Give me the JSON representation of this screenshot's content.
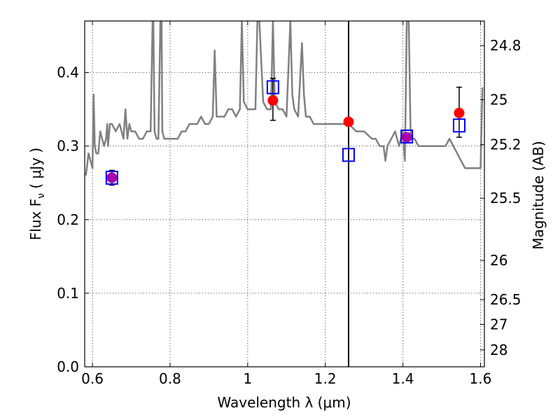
{
  "chart_data": {
    "type": "line",
    "xlabel": "Wavelength  λ (μm)",
    "ylabel": "Flux  F",
    "ylabel_sub": "ν",
    "ylabel_unit": "  ( μJy )",
    "y2label": "Magnitude (AB)",
    "xlim": [
      0.58,
      1.61
    ],
    "ylim": [
      0.0,
      0.47
    ],
    "grid": true,
    "x_ticks": [
      "0.6",
      "0.8",
      "1",
      "1.2",
      "1.4",
      "1.6"
    ],
    "y_ticks": [
      "0.0",
      "0.1",
      "0.2",
      "0.3",
      "0.4"
    ],
    "y2_ticks": [
      "24.8",
      "25",
      "25.2",
      "25.5",
      "26",
      "26.5",
      "27",
      "28"
    ],
    "vertical_line_x": 1.26,
    "colors": {
      "spectrum": "#808080",
      "observed": "#ff0000",
      "model": "#0000ff",
      "blend": "#aa00aa",
      "errorbar": "#000000"
    },
    "series": [
      {
        "kind": "spectrum",
        "x": [
          0.583,
          0.59,
          0.6,
          0.603,
          0.606,
          0.61,
          0.615,
          0.62,
          0.625,
          0.63,
          0.635,
          0.638,
          0.64,
          0.645,
          0.65,
          0.66,
          0.67,
          0.68,
          0.685,
          0.69,
          0.695,
          0.7,
          0.71,
          0.72,
          0.73,
          0.74,
          0.75,
          0.755,
          0.757,
          0.76,
          0.765,
          0.77,
          0.775,
          0.778,
          0.78,
          0.785,
          0.79,
          0.8,
          0.81,
          0.82,
          0.83,
          0.84,
          0.85,
          0.86,
          0.87,
          0.88,
          0.89,
          0.9,
          0.91,
          0.915,
          0.92,
          0.925,
          0.93,
          0.94,
          0.95,
          0.96,
          0.97,
          0.98,
          0.985,
          0.99,
          1.0,
          1.01,
          1.02,
          1.025,
          1.03,
          1.04,
          1.05,
          1.06,
          1.065,
          1.07,
          1.08,
          1.09,
          1.1,
          1.11,
          1.115,
          1.12,
          1.13,
          1.14,
          1.145,
          1.15,
          1.16,
          1.17,
          1.18,
          1.2,
          1.22,
          1.24,
          1.26,
          1.28,
          1.3,
          1.32,
          1.33,
          1.34,
          1.35,
          1.355,
          1.36,
          1.37,
          1.38,
          1.39,
          1.4,
          1.405,
          1.41,
          1.415,
          1.42,
          1.43,
          1.44,
          1.45,
          1.46,
          1.48,
          1.5,
          1.51,
          1.52,
          1.53,
          1.54,
          1.55,
          1.56,
          1.57,
          1.58,
          1.59,
          1.595,
          1.6,
          1.605
        ],
        "y": [
          0.26,
          0.29,
          0.27,
          0.37,
          0.3,
          0.29,
          0.29,
          0.32,
          0.31,
          0.3,
          0.31,
          0.33,
          0.3,
          0.33,
          0.33,
          0.32,
          0.33,
          0.31,
          0.35,
          0.31,
          0.33,
          0.32,
          0.32,
          0.31,
          0.31,
          0.32,
          0.32,
          0.47,
          0.47,
          0.32,
          0.31,
          0.31,
          0.47,
          0.47,
          0.32,
          0.31,
          0.31,
          0.31,
          0.31,
          0.31,
          0.32,
          0.32,
          0.33,
          0.33,
          0.33,
          0.34,
          0.33,
          0.33,
          0.34,
          0.43,
          0.34,
          0.34,
          0.34,
          0.34,
          0.35,
          0.35,
          0.34,
          0.35,
          0.47,
          0.36,
          0.35,
          0.35,
          0.35,
          0.47,
          0.47,
          0.36,
          0.35,
          0.35,
          0.47,
          0.36,
          0.35,
          0.35,
          0.34,
          0.47,
          0.37,
          0.35,
          0.34,
          0.44,
          0.37,
          0.34,
          0.34,
          0.33,
          0.33,
          0.33,
          0.33,
          0.33,
          0.33,
          0.32,
          0.32,
          0.31,
          0.31,
          0.3,
          0.3,
          0.28,
          0.3,
          0.31,
          0.32,
          0.3,
          0.32,
          0.28,
          0.47,
          0.47,
          0.31,
          0.31,
          0.3,
          0.3,
          0.3,
          0.3,
          0.3,
          0.3,
          0.31,
          0.3,
          0.29,
          0.28,
          0.27,
          0.27,
          0.27,
          0.27,
          0.27,
          0.27,
          0.38
        ]
      },
      {
        "kind": "observed",
        "x": [
          0.65,
          1.065,
          1.26,
          1.41,
          1.545
        ],
        "y": [
          0.257,
          0.362,
          0.333,
          0.312,
          0.345
        ],
        "err_low": [
          0.247,
          0.335,
          null,
          null,
          0.312
        ],
        "err_high": [
          0.267,
          0.392,
          null,
          null,
          0.38
        ]
      },
      {
        "kind": "model",
        "x": [
          0.65,
          1.065,
          1.26,
          1.41,
          1.545
        ],
        "y": [
          0.257,
          0.38,
          0.288,
          0.313,
          0.328
        ]
      }
    ]
  }
}
